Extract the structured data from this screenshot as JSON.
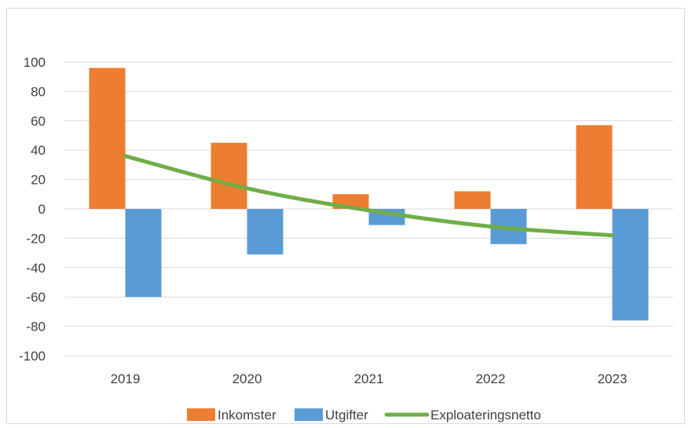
{
  "chart_data": {
    "type": "bar",
    "categories": [
      "2019",
      "2020",
      "2021",
      "2022",
      "2023"
    ],
    "series": [
      {
        "name": "Inkomster",
        "kind": "bar",
        "color": "#ed7d31",
        "values": [
          96,
          45,
          10,
          12,
          57
        ]
      },
      {
        "name": "Utgifter",
        "kind": "bar",
        "color": "#5b9bd5",
        "values": [
          -60,
          -31,
          -11,
          -24,
          -76
        ]
      },
      {
        "name": "Exploateringsnetto",
        "kind": "line",
        "smooth": true,
        "color": "#70ad47",
        "values": [
          36,
          14,
          -1,
          -12,
          -18
        ]
      }
    ],
    "ylim": [
      -100,
      100
    ],
    "yticks": [
      100,
      80,
      60,
      40,
      20,
      0,
      -20,
      -40,
      -60,
      -80,
      -100
    ],
    "title": "",
    "xlabel": "",
    "ylabel": "",
    "grid": true,
    "legend": "bottom"
  }
}
